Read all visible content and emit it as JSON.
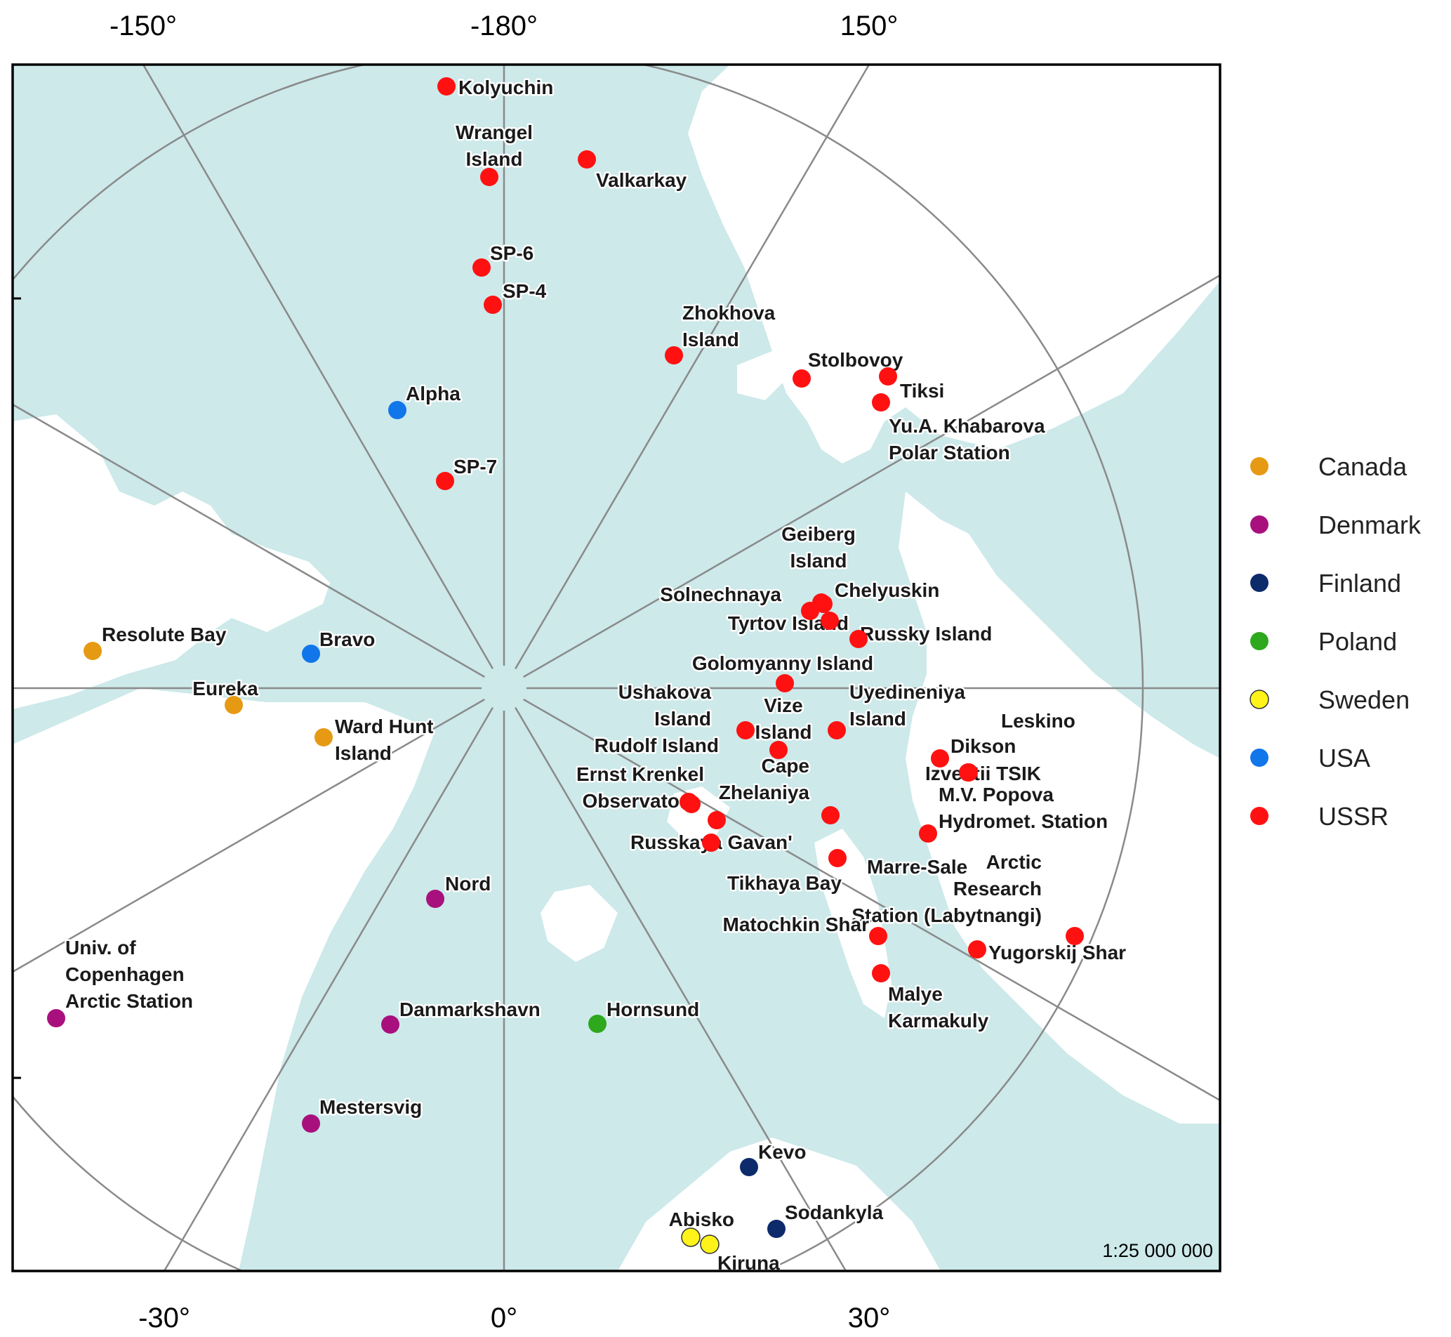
{
  "axis_labels": {
    "top": [
      "-150°",
      "-180°",
      "150°"
    ],
    "bottom": [
      "-30°",
      "0°",
      "30°"
    ]
  },
  "scale": "1:25 000 000",
  "colors": {
    "ocean": "#cde9ea",
    "land": "#ffffff",
    "grid": "#8a8a8a",
    "frame": "#000000"
  },
  "legend": [
    {
      "key": "Canada",
      "label": "Canada",
      "color": "#e69a13"
    },
    {
      "key": "Denmark",
      "label": "Denmark",
      "color": "#a8117d"
    },
    {
      "key": "Finland",
      "label": "Finland",
      "color": "#0d2a6b"
    },
    {
      "key": "Poland",
      "label": "Poland",
      "color": "#2ea81d"
    },
    {
      "key": "Sweden",
      "label": "Sweden",
      "color": "#fff31a"
    },
    {
      "key": "USA",
      "label": "USA",
      "color": "#1176ea"
    },
    {
      "key": "USSR",
      "label": "USSR",
      "color": "#ff1111"
    }
  ],
  "stations": [
    {
      "name": "Kolyuchin",
      "country": "USSR"
    },
    {
      "name": "Wrangel Island",
      "country": "USSR"
    },
    {
      "name": "Valkarkay",
      "country": "USSR"
    },
    {
      "name": "SP-6",
      "country": "USSR"
    },
    {
      "name": "SP-4",
      "country": "USSR"
    },
    {
      "name": "Zhokhova Island",
      "country": "USSR"
    },
    {
      "name": "Stolbovoy",
      "country": "USSR"
    },
    {
      "name": "Tiksi",
      "country": "USSR"
    },
    {
      "name": "Yu.A. Khabarova Polar Station",
      "country": "USSR"
    },
    {
      "name": "Alpha",
      "country": "USA"
    },
    {
      "name": "SP-7",
      "country": "USSR"
    },
    {
      "name": "Geiberg Island",
      "country": "USSR"
    },
    {
      "name": "Chelyuskin",
      "country": "USSR"
    },
    {
      "name": "Solnechnaya",
      "country": "USSR"
    },
    {
      "name": "Tyrtov Island",
      "country": "USSR"
    },
    {
      "name": "Russky Island",
      "country": "USSR"
    },
    {
      "name": "Golomyanny Island",
      "country": "USSR"
    },
    {
      "name": "Resolute Bay",
      "country": "Canada"
    },
    {
      "name": "Bravo",
      "country": "USA"
    },
    {
      "name": "Eureka",
      "country": "Canada"
    },
    {
      "name": "Ward Hunt Island",
      "country": "Canada"
    },
    {
      "name": "Ushakova Island",
      "country": "USSR"
    },
    {
      "name": "Vize Island",
      "country": "USSR"
    },
    {
      "name": "Uyedineniya Island",
      "country": "USSR"
    },
    {
      "name": "Leskino",
      "country": "USSR"
    },
    {
      "name": "Dikson",
      "country": "USSR"
    },
    {
      "name": "Izvestii TSIK",
      "country": "USSR"
    },
    {
      "name": "Rudolf Island",
      "country": "USSR"
    },
    {
      "name": "Cape Zhelaniya",
      "country": "USSR"
    },
    {
      "name": "M.V. Popova Hydromet. Station",
      "country": "USSR"
    },
    {
      "name": "Ernst Krenkel Observatory",
      "country": "USSR"
    },
    {
      "name": "Russkaya Gavan'",
      "country": "USSR"
    },
    {
      "name": "Marre-Sale",
      "country": "USSR"
    },
    {
      "name": "Tikhaya Bay",
      "country": "USSR"
    },
    {
      "name": "Arctic Research Station (Labytnangi)",
      "country": "USSR"
    },
    {
      "name": "Matochkin Shar",
      "country": "USSR"
    },
    {
      "name": "Yugorskij Shar",
      "country": "USSR"
    },
    {
      "name": "Malye Karmakuly",
      "country": "USSR"
    },
    {
      "name": "Nord",
      "country": "Denmark"
    },
    {
      "name": "Univ. of Copenhagen Arctic Station",
      "country": "Denmark"
    },
    {
      "name": "Danmarkshavn",
      "country": "Denmark"
    },
    {
      "name": "Hornsund",
      "country": "Poland"
    },
    {
      "name": "Mestersvig",
      "country": "Denmark"
    },
    {
      "name": "Kevo",
      "country": "Finland"
    },
    {
      "name": "Sodankyla",
      "country": "Finland"
    },
    {
      "name": "Abisko",
      "country": "Sweden"
    },
    {
      "name": "Kiruna",
      "country": "Sweden"
    }
  ]
}
